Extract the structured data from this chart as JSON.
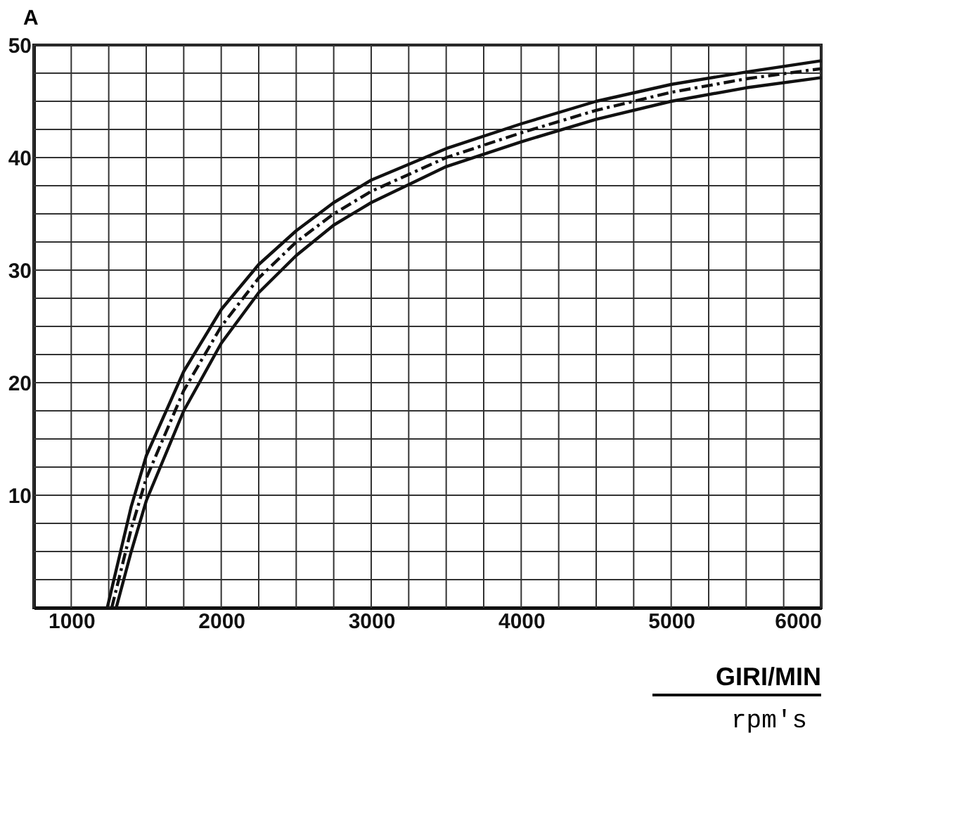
{
  "chart_data": {
    "type": "line",
    "ylabel": "A",
    "xlabel": "GIRI/MIN",
    "annotations": [
      "rpm's"
    ],
    "xlim": [
      750,
      6000
    ],
    "ylim": [
      0,
      50
    ],
    "xticks": [
      {
        "value": 750,
        "label": null
      },
      1000,
      {
        "value": 1250,
        "label": null
      },
      {
        "value": 1500,
        "label": null
      },
      {
        "value": 1750,
        "label": null
      },
      2000,
      {
        "value": 2250,
        "label": null
      },
      {
        "value": 2500,
        "label": null
      },
      {
        "value": 2750,
        "label": null
      },
      3000,
      {
        "value": 3250,
        "label": null
      },
      {
        "value": 3500,
        "label": null
      },
      {
        "value": 3750,
        "label": null
      },
      4000,
      {
        "value": 4250,
        "label": null
      },
      {
        "value": 4500,
        "label": null
      },
      {
        "value": 4750,
        "label": null
      },
      5000,
      {
        "value": 5250,
        "label": null
      },
      {
        "value": 5500,
        "label": null
      },
      {
        "value": 5750,
        "label": null
      },
      6000
    ],
    "yticks": [
      {
        "value": 2.5,
        "label": null
      },
      {
        "value": 5,
        "label": null
      },
      {
        "value": 7.5,
        "label": null
      },
      10,
      {
        "value": 12.5,
        "label": null
      },
      {
        "value": 15,
        "label": null
      },
      {
        "value": 17.5,
        "label": null
      },
      20,
      {
        "value": 22.5,
        "label": null
      },
      {
        "value": 25,
        "label": null
      },
      {
        "value": 27.5,
        "label": null
      },
      30,
      {
        "value": 32.5,
        "label": null
      },
      {
        "value": 35,
        "label": null
      },
      {
        "value": 37.5,
        "label": null
      },
      40,
      {
        "value": 42.5,
        "label": null
      },
      {
        "value": 45,
        "label": null
      },
      {
        "value": 47.5,
        "label": null
      },
      50
    ],
    "grid": true,
    "marker": "none",
    "series": [
      {
        "color": "#111111",
        "line_style": "solid",
        "x": [
          1240,
          1400,
          1500,
          1750,
          2000,
          2250,
          2500,
          2750,
          3000,
          3500,
          4000,
          4500,
          5000,
          5500,
          6000
        ],
        "values": [
          0,
          9,
          13.5,
          21,
          26.5,
          30.5,
          33.5,
          36,
          38,
          40.8,
          43,
          45,
          46.5,
          47.6,
          48.6
        ]
      },
      {
        "color": "#111111",
        "line_style": "dashed",
        "x": [
          1270,
          1400,
          1500,
          1750,
          2000,
          2250,
          2500,
          2750,
          3000,
          3500,
          4000,
          4500,
          5000,
          5500,
          6000
        ],
        "values": [
          0,
          7,
          11.5,
          19.3,
          25,
          29.3,
          32.5,
          35,
          37,
          40,
          42.2,
          44.2,
          45.8,
          47,
          47.9
        ]
      },
      {
        "color": "#111111",
        "line_style": "solid",
        "x": [
          1300,
          1400,
          1500,
          1750,
          2000,
          2250,
          2500,
          2750,
          3000,
          3500,
          4000,
          4500,
          5000,
          5500,
          6000
        ],
        "values": [
          0,
          5,
          9.5,
          17.5,
          23.5,
          28,
          31.3,
          34,
          36,
          39.2,
          41.4,
          43.4,
          45,
          46.2,
          47.1
        ]
      }
    ]
  }
}
